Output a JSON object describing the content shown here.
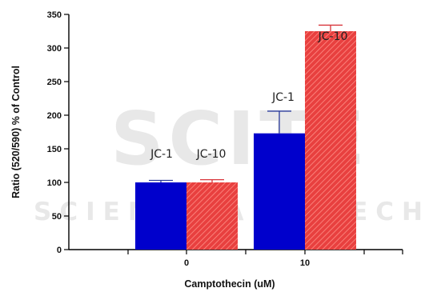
{
  "watermark": {
    "big": "SCITE",
    "small": "SCIENCE AND TECH"
  },
  "chart_data": {
    "type": "bar",
    "xlabel": "Camptothecin (uM)",
    "ylabel": "Ratio (520/590) % of Control",
    "ylim": [
      0,
      350
    ],
    "yticks": [
      0,
      50,
      100,
      150,
      200,
      250,
      300,
      350
    ],
    "categories": [
      "0",
      "10"
    ],
    "grid": false,
    "series": [
      {
        "name": "JC-1",
        "color": "#0000cc",
        "values": [
          100,
          173
        ],
        "errors": [
          3,
          33
        ]
      },
      {
        "name": "JC-10",
        "color": "#e8403f",
        "hatch": true,
        "values": [
          100,
          325
        ],
        "errors": [
          4,
          9
        ]
      }
    ]
  }
}
